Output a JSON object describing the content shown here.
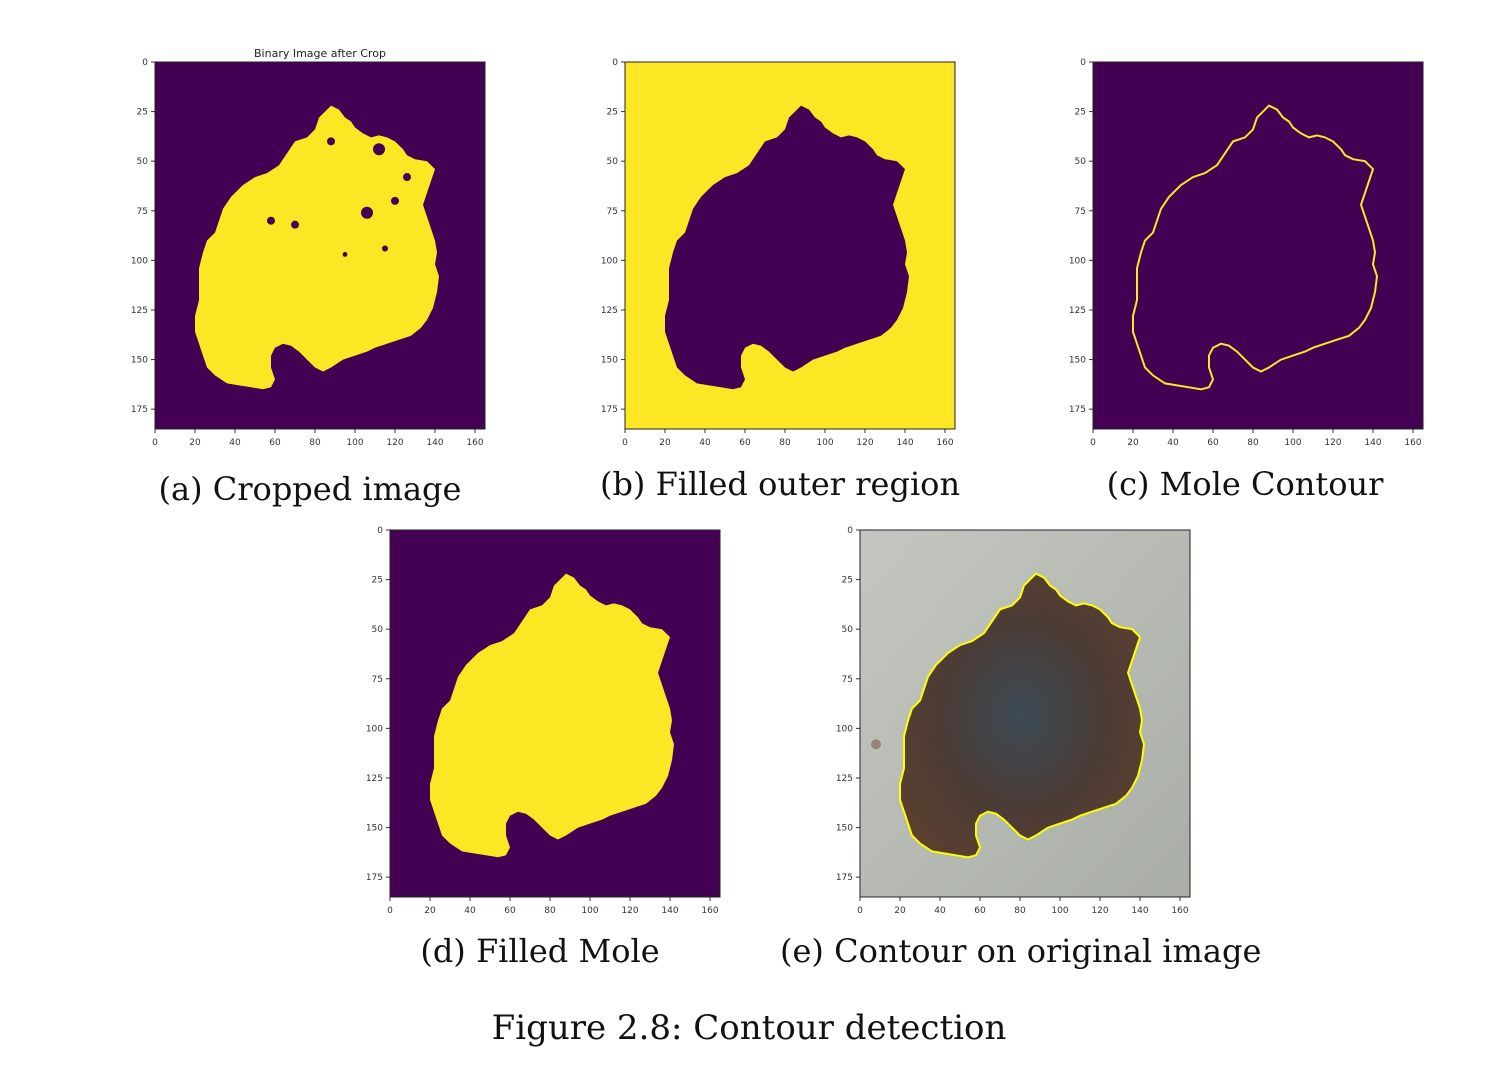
{
  "colors": {
    "purple": "#440154",
    "yellow": "#fde725",
    "contour": "#ffff00",
    "skin": "#b8bdb4"
  },
  "panels": [
    {
      "id": "a",
      "title": "Binary Image after Crop",
      "caption": "(a) Cropped image",
      "mode": "filled-noisy",
      "xticks": [
        "0",
        "20",
        "40",
        "60",
        "80",
        "100",
        "120",
        "140",
        "160"
      ],
      "yticks": [
        "0",
        "25",
        "50",
        "75",
        "100",
        "125",
        "150",
        "175"
      ]
    },
    {
      "id": "b",
      "title": "",
      "caption": "(b) Filled outer region",
      "mode": "inverted",
      "xticks": [
        "0",
        "20",
        "40",
        "60",
        "80",
        "100",
        "120",
        "140",
        "160"
      ],
      "yticks": [
        "0",
        "25",
        "50",
        "75",
        "100",
        "125",
        "150",
        "175"
      ]
    },
    {
      "id": "c",
      "title": "",
      "caption": "(c) Mole Contour",
      "mode": "contour",
      "xticks": [
        "0",
        "20",
        "40",
        "60",
        "80",
        "100",
        "120",
        "140",
        "160"
      ],
      "yticks": [
        "0",
        "25",
        "50",
        "75",
        "100",
        "125",
        "150",
        "175"
      ]
    },
    {
      "id": "d",
      "title": "",
      "caption": "(d) Filled Mole",
      "mode": "filled",
      "xticks": [
        "0",
        "20",
        "40",
        "60",
        "80",
        "100",
        "120",
        "140",
        "160"
      ],
      "yticks": [
        "0",
        "25",
        "50",
        "75",
        "100",
        "125",
        "150",
        "175"
      ]
    },
    {
      "id": "e",
      "title": "",
      "caption": "(e) Contour on original image",
      "mode": "photo",
      "xticks": [
        "0",
        "20",
        "40",
        "60",
        "80",
        "100",
        "120",
        "140",
        "160"
      ],
      "yticks": [
        "0",
        "25",
        "50",
        "75",
        "100",
        "125",
        "150",
        "175"
      ]
    }
  ],
  "figure_caption": "Figure 2.8: Contour detection"
}
